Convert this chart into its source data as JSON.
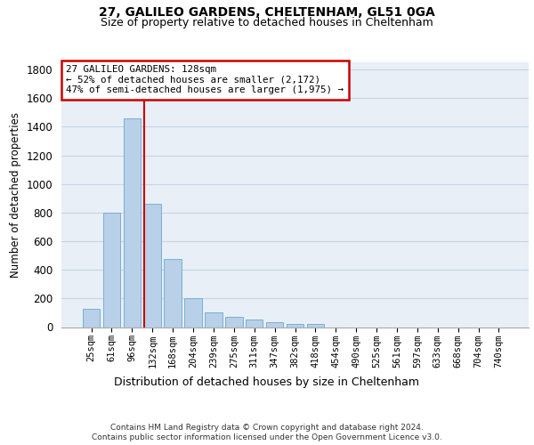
{
  "title1": "27, GALILEO GARDENS, CHELTENHAM, GL51 0GA",
  "title2": "Size of property relative to detached houses in Cheltenham",
  "xlabel": "Distribution of detached houses by size in Cheltenham",
  "ylabel": "Number of detached properties",
  "categories": [
    "25sqm",
    "61sqm",
    "96sqm",
    "132sqm",
    "168sqm",
    "204sqm",
    "239sqm",
    "275sqm",
    "311sqm",
    "347sqm",
    "382sqm",
    "418sqm",
    "454sqm",
    "490sqm",
    "525sqm",
    "561sqm",
    "597sqm",
    "633sqm",
    "668sqm",
    "704sqm",
    "740sqm"
  ],
  "values": [
    125,
    800,
    1460,
    860,
    475,
    200,
    105,
    70,
    50,
    32,
    20,
    20,
    0,
    0,
    0,
    0,
    0,
    0,
    0,
    0,
    0
  ],
  "bar_color": "#b8d0e8",
  "bar_edge_color": "#7aafd4",
  "annotation_text": "27 GALILEO GARDENS: 128sqm\n← 52% of detached houses are smaller (2,172)\n47% of semi-detached houses are larger (1,975) →",
  "annotation_box_color": "#ffffff",
  "annotation_box_edge": "#cc0000",
  "vline_color": "#cc0000",
  "vline_x": 2.6,
  "footer1": "Contains HM Land Registry data © Crown copyright and database right 2024.",
  "footer2": "Contains public sector information licensed under the Open Government Licence v3.0.",
  "bg_color": "#e8eff7",
  "grid_color": "#c5d5e5",
  "ylim": [
    0,
    1850
  ],
  "yticks": [
    0,
    200,
    400,
    600,
    800,
    1000,
    1200,
    1400,
    1600,
    1800
  ]
}
